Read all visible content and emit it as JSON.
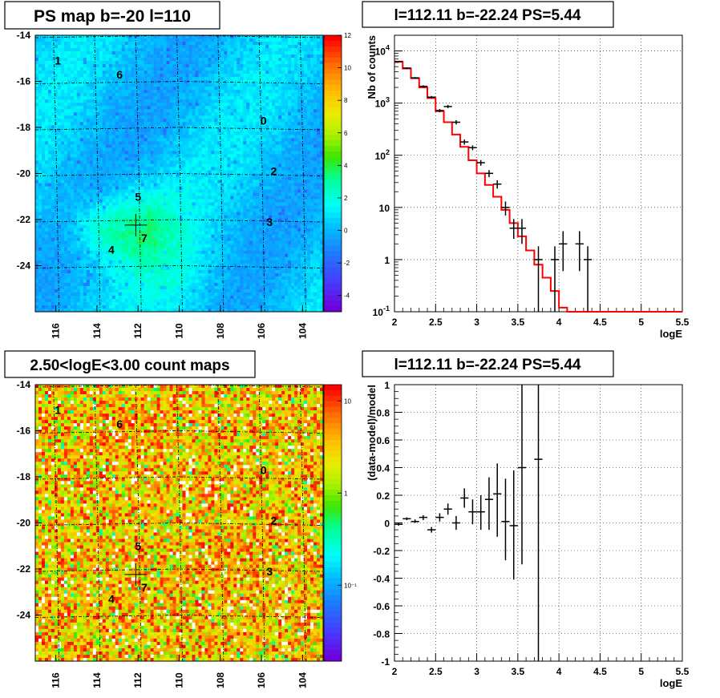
{
  "chart_data": [
    {
      "id": "psmap",
      "type": "heatmap",
      "title": "PS map b=-20 l=110",
      "xticks": [
        "116",
        "114",
        "112",
        "110",
        "108",
        "106",
        "104"
      ],
      "yticks": [
        "-14",
        "-16",
        "-18",
        "-20",
        "-22",
        "-24"
      ],
      "xlim": [
        117,
        103
      ],
      "ylim": [
        -26,
        -14
      ],
      "colorbar": {
        "min": -5,
        "max": 12,
        "ticks": [
          "12",
          "10",
          "8",
          "6",
          "4",
          "2",
          "0",
          "-2",
          "-4"
        ],
        "tick_values": [
          12,
          10,
          8,
          6,
          4,
          2,
          0,
          -2,
          -4
        ]
      },
      "labels": [
        {
          "text": "1",
          "l": 115.9,
          "b": -15.1
        },
        {
          "text": "6",
          "l": 112.9,
          "b": -15.7
        },
        {
          "text": "0",
          "l": 105.9,
          "b": -17.7
        },
        {
          "text": "2",
          "l": 105.4,
          "b": -19.9
        },
        {
          "text": "5",
          "l": 112.0,
          "b": -21.0
        },
        {
          "text": "3",
          "l": 105.6,
          "b": -22.1
        },
        {
          "text": "7",
          "l": 111.7,
          "b": -22.8
        },
        {
          "text": "4",
          "l": 113.3,
          "b": -23.3
        }
      ],
      "marker": {
        "l": 112.11,
        "b": -22.24
      }
    },
    {
      "id": "spectrum",
      "type": "line",
      "title": "l=112.11 b=-22.24 PS=5.44",
      "xlabel": "logE",
      "ylabel": "Nb of counts",
      "xlim": [
        2,
        5.5
      ],
      "ylim": [
        0.1,
        20000
      ],
      "yscale": "log",
      "xticks": [
        "2",
        "2.5",
        "3",
        "3.5",
        "4",
        "4.5",
        "5",
        "5.5"
      ],
      "xtick_values": [
        2,
        2.5,
        3,
        3.5,
        4,
        4.5,
        5,
        5.5
      ],
      "yticks": [
        {
          "value": 0.1,
          "base": "10",
          "exp": "-1"
        },
        {
          "value": 1,
          "base": "1",
          "exp": ""
        },
        {
          "value": 10,
          "base": "10",
          "exp": ""
        },
        {
          "value": 100,
          "base": "10",
          "exp": "2"
        },
        {
          "value": 1000,
          "base": "10",
          "exp": "3"
        },
        {
          "value": 10000,
          "base": "10",
          "exp": "4"
        }
      ],
      "grid": true,
      "series": [
        {
          "type": "step",
          "edges": [
            2.0,
            2.1,
            2.2,
            2.3,
            2.4,
            2.5,
            2.6,
            2.7,
            2.8,
            2.9,
            3.0,
            3.1,
            3.2,
            3.3,
            3.4,
            3.5,
            3.6,
            3.7,
            3.8,
            3.9,
            4.0,
            4.1,
            5.5
          ],
          "values": [
            6200,
            4600,
            3000,
            2000,
            1250,
            700,
            430,
            250,
            145,
            80,
            45,
            27,
            16,
            9,
            5,
            2.8,
            1.5,
            0.8,
            0.45,
            0.25,
            0.12,
            0.1
          ]
        },
        {
          "type": "errorbar",
          "points": [
            {
              "x": 2.05,
              "y": 6300,
              "lo": 6150,
              "hi": 6450
            },
            {
              "x": 2.15,
              "y": 4700,
              "lo": 4550,
              "hi": 4850
            },
            {
              "x": 2.25,
              "y": 3050,
              "lo": 2950,
              "hi": 3150
            },
            {
              "x": 2.35,
              "y": 2100,
              "lo": 2000,
              "hi": 2200
            },
            {
              "x": 2.45,
              "y": 1300,
              "lo": 1230,
              "hi": 1370
            },
            {
              "x": 2.55,
              "y": 720,
              "lo": 670,
              "hi": 770
            },
            {
              "x": 2.65,
              "y": 860,
              "lo": 800,
              "hi": 920
            },
            {
              "x": 2.75,
              "y": 430,
              "lo": 390,
              "hi": 470
            },
            {
              "x": 2.85,
              "y": 180,
              "lo": 160,
              "hi": 200
            },
            {
              "x": 2.95,
              "y": 140,
              "lo": 125,
              "hi": 155
            },
            {
              "x": 3.05,
              "y": 72,
              "lo": 63,
              "hi": 81
            },
            {
              "x": 3.15,
              "y": 45,
              "lo": 38,
              "hi": 52
            },
            {
              "x": 3.25,
              "y": 28,
              "lo": 23,
              "hi": 33
            },
            {
              "x": 3.35,
              "y": 10,
              "lo": 7,
              "hi": 13
            },
            {
              "x": 3.45,
              "y": 4,
              "lo": 2.5,
              "hi": 6
            },
            {
              "x": 3.55,
              "y": 4,
              "lo": 2,
              "hi": 6
            },
            {
              "x": 3.75,
              "y": 1,
              "lo": 0.1,
              "hi": 1.8
            },
            {
              "x": 3.95,
              "y": 1,
              "lo": 0.1,
              "hi": 1.8
            },
            {
              "x": 4.05,
              "y": 2,
              "lo": 0.6,
              "hi": 3.5
            },
            {
              "x": 4.25,
              "y": 2,
              "lo": 0.6,
              "hi": 3.5
            },
            {
              "x": 4.35,
              "y": 1,
              "lo": 0.1,
              "hi": 1.8
            }
          ]
        }
      ]
    },
    {
      "id": "countmap",
      "type": "heatmap",
      "title": "2.50<logE<3.00 count maps",
      "xticks": [
        "116",
        "114",
        "112",
        "110",
        "108",
        "106",
        "104"
      ],
      "yticks": [
        "-14",
        "-16",
        "-18",
        "-20",
        "-22",
        "-24"
      ],
      "xlim": [
        117,
        103
      ],
      "ylim": [
        -26,
        -14
      ],
      "colorbar": {
        "scale": "log",
        "min": 0.015,
        "max": 15,
        "ticks": [
          "10",
          "1",
          "10⁻¹"
        ],
        "tick_values": [
          10,
          1,
          0.1
        ]
      },
      "labels": [
        {
          "text": "1",
          "l": 115.9,
          "b": -15.1
        },
        {
          "text": "6",
          "l": 112.9,
          "b": -15.7
        },
        {
          "text": "0",
          "l": 105.9,
          "b": -17.7
        },
        {
          "text": "2",
          "l": 105.4,
          "b": -19.9
        },
        {
          "text": "5",
          "l": 112.0,
          "b": -21.0
        },
        {
          "text": "3",
          "l": 105.6,
          "b": -22.1
        },
        {
          "text": "7",
          "l": 111.7,
          "b": -22.8
        },
        {
          "text": "4",
          "l": 113.3,
          "b": -23.3
        }
      ],
      "marker": {
        "l": 112.11,
        "b": -22.24
      }
    },
    {
      "id": "residual",
      "type": "scatter",
      "title": "l=112.11 b=-22.24 PS=5.44",
      "xlabel": "logE",
      "ylabel": "(data-model)/model",
      "xlim": [
        2,
        5.5
      ],
      "ylim": [
        -1,
        1
      ],
      "xticks": [
        "2",
        "2.5",
        "3",
        "3.5",
        "4",
        "4.5",
        "5",
        "5.5"
      ],
      "xtick_values": [
        2,
        2.5,
        3,
        3.5,
        4,
        4.5,
        5,
        5.5
      ],
      "yticks": [
        "1",
        "0.8",
        "0.6",
        "0.4",
        "0.2",
        "0",
        "-0.2",
        "-0.4",
        "-0.6",
        "-0.8",
        "-1"
      ],
      "ytick_values": [
        1,
        0.8,
        0.6,
        0.4,
        0.2,
        0,
        -0.2,
        -0.4,
        -0.6,
        -0.8,
        -1
      ],
      "grid": true,
      "series": [
        {
          "type": "errorbar",
          "points": [
            {
              "x": 2.05,
              "y": -0.01,
              "lo": -0.02,
              "hi": 0.0
            },
            {
              "x": 2.15,
              "y": 0.03,
              "lo": 0.02,
              "hi": 0.04
            },
            {
              "x": 2.25,
              "y": 0.01,
              "lo": 0.0,
              "hi": 0.025
            },
            {
              "x": 2.35,
              "y": 0.04,
              "lo": 0.02,
              "hi": 0.055
            },
            {
              "x": 2.45,
              "y": -0.05,
              "lo": -0.07,
              "hi": -0.03
            },
            {
              "x": 2.55,
              "y": 0.04,
              "lo": 0.01,
              "hi": 0.07
            },
            {
              "x": 2.65,
              "y": 0.1,
              "lo": 0.06,
              "hi": 0.14
            },
            {
              "x": 2.75,
              "y": 0.0,
              "lo": -0.05,
              "hi": 0.05
            },
            {
              "x": 2.85,
              "y": 0.18,
              "lo": 0.11,
              "hi": 0.25
            },
            {
              "x": 2.95,
              "y": 0.08,
              "lo": -0.01,
              "hi": 0.17
            },
            {
              "x": 3.05,
              "y": 0.08,
              "lo": -0.05,
              "hi": 0.2
            },
            {
              "x": 3.15,
              "y": 0.17,
              "lo": -0.05,
              "hi": 0.33
            },
            {
              "x": 3.25,
              "y": 0.21,
              "lo": -0.1,
              "hi": 0.43
            },
            {
              "x": 3.35,
              "y": 0.01,
              "lo": -0.27,
              "hi": 0.32
            },
            {
              "x": 3.45,
              "y": -0.02,
              "lo": -0.41,
              "hi": 0.38
            },
            {
              "x": 3.55,
              "y": 0.4,
              "lo": -0.3,
              "hi": 1.0
            },
            {
              "x": 3.75,
              "y": 0.46,
              "lo": -1.0,
              "hi": 1.0
            }
          ]
        }
      ]
    }
  ]
}
